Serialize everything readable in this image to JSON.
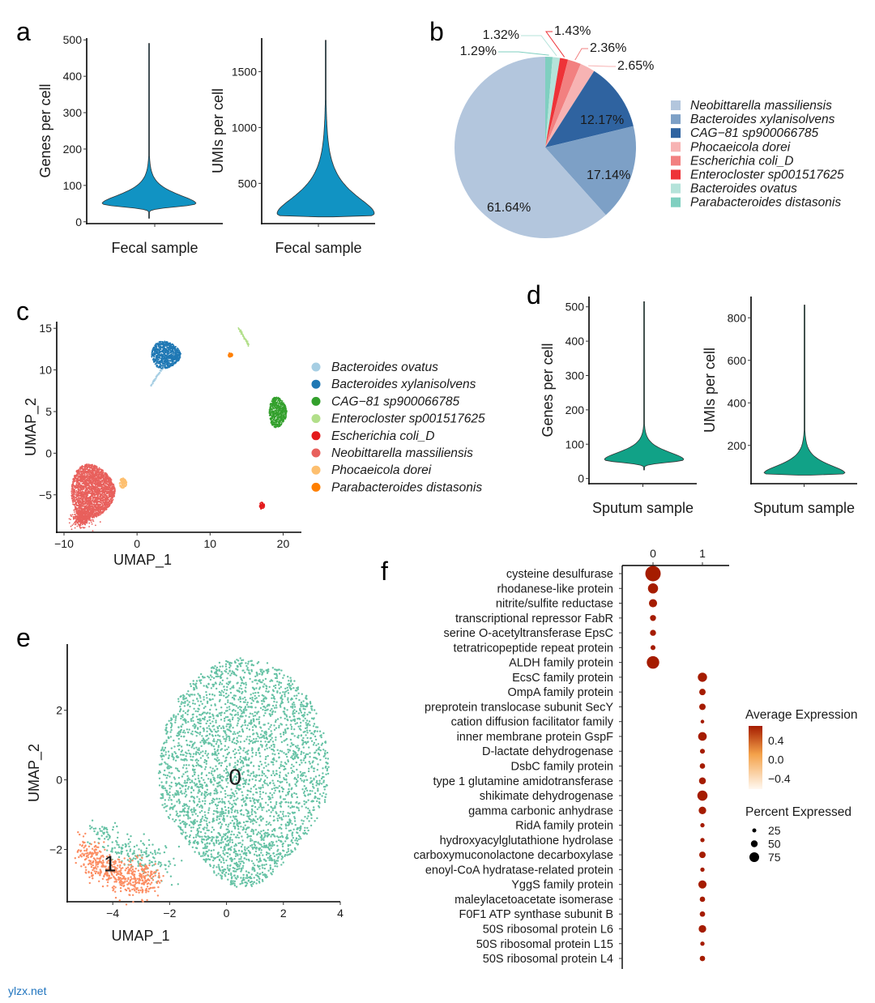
{
  "panel_labels": [
    "a",
    "b",
    "c",
    "d",
    "e",
    "f"
  ],
  "watermark": "ylzx.net",
  "chart_data": [
    {
      "id": "a1",
      "type": "violin",
      "title": "",
      "xlabel": "Fecal sample",
      "ylabel": "Genes per cell",
      "yticks": [
        0,
        100,
        200,
        300,
        400,
        500
      ],
      "ylim": [
        -5,
        505
      ],
      "violin": {
        "min": 10,
        "mode": 50,
        "max": 490,
        "color": "#1193c3"
      }
    },
    {
      "id": "a2",
      "type": "violin",
      "title": "",
      "xlabel": "Fecal sample",
      "ylabel": "UMIs per cell",
      "yticks": [
        500,
        1000,
        1500
      ],
      "ylim": [
        140,
        1800
      ],
      "violin": {
        "min": 200,
        "mode": 230,
        "max": 1780,
        "color": "#1193c3"
      }
    },
    {
      "id": "b",
      "type": "pie",
      "title": "",
      "slices": [
        {
          "name": "Parabacteroides distasonis",
          "value": 1.29,
          "label": "1.29%",
          "color": "#7fcfc0"
        },
        {
          "name": "Bacteroides ovatus",
          "value": 1.32,
          "label": "1.32%",
          "color": "#b5e3da"
        },
        {
          "name": "Enterocloster sp001517625",
          "value": 1.43,
          "label": "1.43%",
          "color": "#ee3338"
        },
        {
          "name": "Escherichia coli_D",
          "value": 2.36,
          "label": "2.36%",
          "color": "#f28080"
        },
        {
          "name": "Phocaeicola dorei",
          "value": 2.65,
          "label": "2.65%",
          "color": "#f7b3b3"
        },
        {
          "name": "CAG−81 sp900066785",
          "value": 12.17,
          "label": "12.17%",
          "color": "#2f63a0"
        },
        {
          "name": "Bacteroides xylanisolvens",
          "value": 17.14,
          "label": "17.14%",
          "color": "#7da0c6"
        },
        {
          "name": "Neobittarella massiliensis",
          "value": 61.64,
          "label": "61.64%",
          "color": "#b3c6dd"
        }
      ],
      "legend": [
        "Neobittarella massiliensis",
        "Bacteroides xylanisolvens",
        "CAG−81 sp900066785",
        "Phocaeicola dorei",
        "Escherichia coli_D",
        "Enterocloster sp001517625",
        "Bacteroides ovatus",
        "Parabacteroides distasonis"
      ],
      "legend_placement": "right"
    },
    {
      "id": "c",
      "type": "scatter",
      "title": "",
      "xlabel": "UMAP_1",
      "ylabel": "UMAP_2",
      "xticks": [
        -10,
        0,
        10,
        20
      ],
      "yticks": [
        -5,
        0,
        5,
        10,
        15
      ],
      "xlim": [
        -11,
        22.5
      ],
      "ylim": [
        -9.5,
        15.8
      ],
      "legend_placement": "right",
      "clusters": [
        {
          "name": "Bacteroides ovatus",
          "color": "#a6cee3",
          "center": [
            2.6,
            9.0
          ],
          "spread": [
            0.3,
            0.8
          ],
          "shape": "streak"
        },
        {
          "name": "Bacteroides xylanisolvens",
          "color": "#1f78b4",
          "center": [
            4.0,
            11.8
          ],
          "spread": [
            2.0,
            1.6
          ],
          "shape": "blob"
        },
        {
          "name": "CAG−81 sp900066785",
          "color": "#33a02c",
          "center": [
            19.3,
            4.9
          ],
          "spread": [
            1.2,
            1.8
          ],
          "shape": "blob"
        },
        {
          "name": "Enterocloster sp001517625",
          "color": "#b2df8a",
          "center": [
            14.6,
            14.0
          ],
          "spread": [
            0.7,
            1.0
          ],
          "shape": "line"
        },
        {
          "name": "Escherichia coli_D",
          "color": "#e31a1c",
          "center": [
            17.1,
            -6.3
          ],
          "spread": [
            0.35,
            0.4
          ],
          "shape": "blob"
        },
        {
          "name": "Neobittarella massiliensis",
          "color": "#e8605c",
          "center": [
            -6.0,
            -4.6
          ],
          "spread": [
            3.0,
            3.2
          ],
          "shape": "blob"
        },
        {
          "name": "Phocaeicola dorei",
          "color": "#fdbf6f",
          "center": [
            -1.9,
            -3.6
          ],
          "spread": [
            0.5,
            0.6
          ],
          "shape": "blob"
        },
        {
          "name": "Parabacteroides distasonis",
          "color": "#ff7f00",
          "center": [
            12.8,
            11.8
          ],
          "spread": [
            0.3,
            0.25
          ],
          "shape": "blob"
        }
      ]
    },
    {
      "id": "d1",
      "type": "violin",
      "title": "",
      "xlabel": "Sputum sample",
      "ylabel": "Genes per cell",
      "yticks": [
        0,
        100,
        200,
        300,
        400,
        500
      ],
      "ylim": [
        -15,
        530
      ],
      "violin": {
        "min": 25,
        "mode": 55,
        "max": 515,
        "color": "#11a287"
      }
    },
    {
      "id": "d2",
      "type": "violin",
      "title": "",
      "xlabel": "Sputum sample",
      "ylabel": "UMIs per cell",
      "yticks": [
        200,
        400,
        600,
        800
      ],
      "ylim": [
        20,
        900
      ],
      "violin": {
        "min": 60,
        "mode": 70,
        "max": 860,
        "color": "#11a287"
      }
    },
    {
      "id": "e",
      "type": "scatter",
      "title": "",
      "xlabel": "UMAP_1",
      "ylabel": "UMAP_2",
      "xticks": [
        -4,
        -2,
        0,
        2,
        4
      ],
      "yticks": [
        -2,
        0,
        2
      ],
      "xlim": [
        -5.6,
        4.0
      ],
      "ylim": [
        -3.5,
        3.9
      ],
      "clusters": [
        {
          "name": "0",
          "label": "0",
          "color": "#66c2a5",
          "center": [
            0.6,
            0.2
          ],
          "spread": [
            3.0,
            3.3
          ],
          "shape": "disc"
        },
        {
          "name": "1",
          "label": "1",
          "color": "#fc8d62",
          "center": [
            -4.1,
            -2.4
          ],
          "spread": [
            1.2,
            0.55
          ],
          "shape": "band"
        }
      ]
    },
    {
      "id": "f",
      "type": "dotplot",
      "title": "",
      "xcategories": [
        "0",
        "1"
      ],
      "legend_color_title": "Average Expression",
      "legend_color_ticks": [
        "0.4",
        "0.0",
        "−0.4"
      ],
      "legend_color_range": [
        -0.6,
        0.6
      ],
      "legend_size_title": "Percent Expressed",
      "legend_size_ticks": [
        25,
        50,
        75
      ],
      "color_low": "#fff8f0",
      "color_mid": "#f4a24a",
      "color_high": "#a51c00",
      "rows": [
        {
          "gene": "cysteine desulfurase",
          "cluster": "0",
          "pct": 100,
          "avg": 0.6
        },
        {
          "gene": "rhodanese-like protein",
          "cluster": "0",
          "pct": 66,
          "avg": 0.6
        },
        {
          "gene": "nitrite/sulfite reductase",
          "cluster": "0",
          "pct": 53,
          "avg": 0.6
        },
        {
          "gene": "transcriptional repressor FabR",
          "cluster": "0",
          "pct": 39,
          "avg": 0.6
        },
        {
          "gene": "serine O-acetyltransferase EpsC",
          "cluster": "0",
          "pct": 39,
          "avg": 0.6
        },
        {
          "gene": "tetratricopeptide repeat protein",
          "cluster": "0",
          "pct": 32,
          "avg": 0.6
        },
        {
          "gene": "ALDH family protein",
          "cluster": "0",
          "pct": 81,
          "avg": 0.6
        },
        {
          "gene": "EcsC family protein",
          "cluster": "1",
          "pct": 60,
          "avg": 0.6
        },
        {
          "gene": "OmpA family protein",
          "cluster": "1",
          "pct": 42,
          "avg": 0.6
        },
        {
          "gene": "preprotein translocase subunit SecY",
          "cluster": "1",
          "pct": 42,
          "avg": 0.6
        },
        {
          "gene": "cation diffusion facilitator family",
          "cluster": "1",
          "pct": 24,
          "avg": 0.6
        },
        {
          "gene": "inner membrane protein GspF",
          "cluster": "1",
          "pct": 56,
          "avg": 0.6
        },
        {
          "gene": "D-lactate dehydrogenase",
          "cluster": "1",
          "pct": 32,
          "avg": 0.6
        },
        {
          "gene": "DsbC family protein",
          "cluster": "1",
          "pct": 35,
          "avg": 0.6
        },
        {
          "gene": "type 1 glutamine amidotransferase",
          "cluster": "1",
          "pct": 45,
          "avg": 0.6
        },
        {
          "gene": "shikimate dehydrogenase",
          "cluster": "1",
          "pct": 66,
          "avg": 0.6
        },
        {
          "gene": "gamma carbonic anhydrase",
          "cluster": "1",
          "pct": 49,
          "avg": 0.6
        },
        {
          "gene": "RidA family protein",
          "cluster": "1",
          "pct": 28,
          "avg": 0.6
        },
        {
          "gene": "hydroxyacylglutathione hydrolase",
          "cluster": "1",
          "pct": 28,
          "avg": 0.6
        },
        {
          "gene": "carboxymuconolactone decarboxylase",
          "cluster": "1",
          "pct": 42,
          "avg": 0.6
        },
        {
          "gene": "enoyl-CoA hydratase-related protein",
          "cluster": "1",
          "pct": 28,
          "avg": 0.6
        },
        {
          "gene": "YggS family protein",
          "cluster": "1",
          "pct": 53,
          "avg": 0.6
        },
        {
          "gene": "maleylacetoacetate isomerase",
          "cluster": "1",
          "pct": 35,
          "avg": 0.6
        },
        {
          "gene": "F0F1 ATP synthase subunit B",
          "cluster": "1",
          "pct": 35,
          "avg": 0.6
        },
        {
          "gene": "50S ribosomal protein L6",
          "cluster": "1",
          "pct": 49,
          "avg": 0.6
        },
        {
          "gene": "50S ribosomal protein L15",
          "cluster": "1",
          "pct": 28,
          "avg": 0.6
        },
        {
          "gene": "50S ribosomal protein L4",
          "cluster": "1",
          "pct": 35,
          "avg": 0.6
        }
      ]
    }
  ]
}
